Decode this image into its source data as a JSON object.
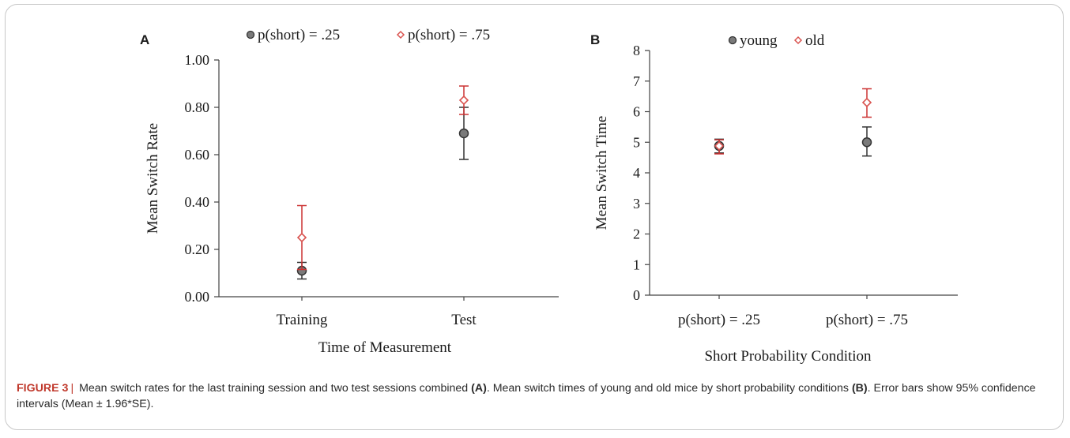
{
  "chart_data": [
    {
      "panel": "A",
      "type": "scatter",
      "categories": [
        "Training",
        "Test"
      ],
      "xlabel": "Time of Measurement",
      "ylabel": "Mean Switch Rate",
      "ylim": [
        0,
        1
      ],
      "yticks": [
        "0.00",
        "0.20",
        "0.40",
        "0.60",
        "0.80",
        "1.00"
      ],
      "grid": false,
      "legend_position": "top",
      "series": [
        {
          "name": "p(short) = .25",
          "color": "#6b6b6b",
          "marker": "circle",
          "values": [
            0.11,
            0.69
          ],
          "lower": [
            0.075,
            0.58
          ],
          "upper": [
            0.145,
            0.8
          ]
        },
        {
          "name": "p(short) = .75",
          "color": "#d9534f",
          "marker": "diamond",
          "values": [
            0.25,
            0.83
          ],
          "lower": [
            0.115,
            0.77
          ],
          "upper": [
            0.385,
            0.89
          ]
        }
      ]
    },
    {
      "panel": "B",
      "type": "scatter",
      "categories": [
        "p(short) = .25",
        "p(short) = .75"
      ],
      "xlabel": "Short Probability  Condition",
      "ylabel": "Mean Switch Time",
      "ylim": [
        0,
        8
      ],
      "yticks": [
        "0",
        "1",
        "2",
        "3",
        "4",
        "5",
        "6",
        "7",
        "8"
      ],
      "grid": false,
      "legend_position": "top",
      "series": [
        {
          "name": "young",
          "color": "#6b6b6b",
          "marker": "circle",
          "values": [
            4.88,
            5.0
          ],
          "lower": [
            4.65,
            4.55
          ],
          "upper": [
            5.1,
            5.5
          ]
        },
        {
          "name": "old",
          "color": "#d9534f",
          "marker": "diamond",
          "values": [
            4.88,
            6.3
          ],
          "lower": [
            4.62,
            5.82
          ],
          "upper": [
            5.08,
            6.75
          ]
        }
      ]
    }
  ],
  "caption": {
    "label": "FIGURE 3",
    "separator": "|",
    "part1": "Mean switch rates for the last training session and two test sessions combined",
    "ref_a": "(A)",
    "part2": ". Mean switch times of young and old mice by short probability conditions",
    "ref_b": "(B)",
    "part3": ". Error bars show 95% confidence intervals (Mean ± 1.96*SE)."
  }
}
